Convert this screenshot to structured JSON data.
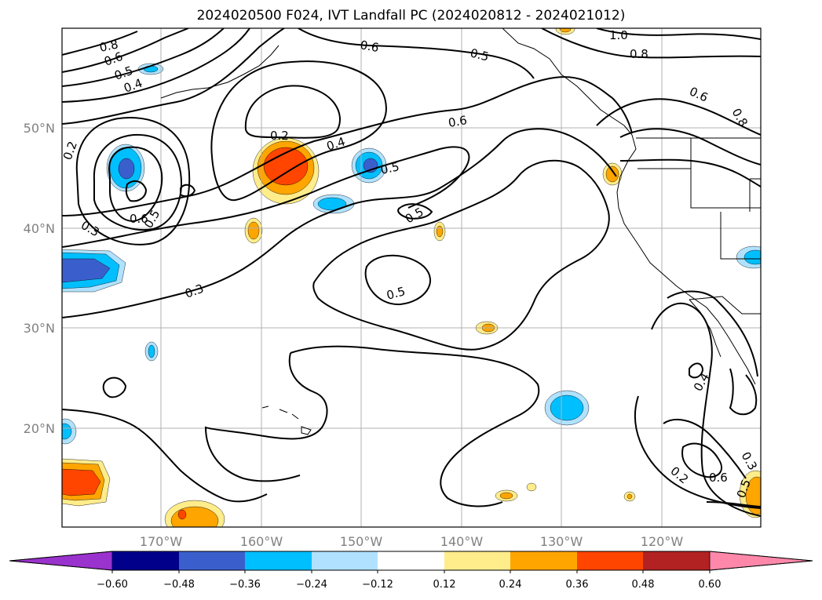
{
  "title": "2024020500 F024, IVT Landfall PC (2024020812 - 2024021012)",
  "latitude_labels": [
    "50°N",
    "40°N",
    "30°N",
    "20°N"
  ],
  "longitude_labels": [
    "170°W",
    "160°W",
    "150°W",
    "140°W",
    "130°W",
    "120°W"
  ],
  "colorbar": {
    "tick_labels": [
      "−0.60",
      "−0.48",
      "−0.36",
      "−0.24",
      "−0.12",
      "0.12",
      "0.24",
      "0.36",
      "0.48",
      "0.60"
    ],
    "colors": [
      "#9a32cd",
      "#00008b",
      "#3a5fcd",
      "#00bfff",
      "#b0e2ff",
      "#ffffff",
      "#ffec8b",
      "#ffa500",
      "#ff4500",
      "#b22222",
      "#ff88aa"
    ]
  },
  "contour_labels": [
    "0.8",
    "0.6",
    "0.5",
    "0.4",
    "0.6",
    "0.5",
    "1.0",
    "0.8",
    "0.6",
    "0.8",
    "0.2",
    "0.4",
    "0.6",
    "0.5",
    "0.2",
    "0.3",
    "0.6",
    "0.5",
    "0.5",
    "0.3",
    "0.5",
    "0.4",
    "0.3",
    "0.2",
    "0.6",
    "0.5"
  ],
  "fill_colors": {
    "neg_deep": "#3a5fcd",
    "neg_mid": "#00bfff",
    "neg_light": "#b0e2ff",
    "pos_light": "#ffec8b",
    "pos_mid": "#ffa500",
    "pos_strong": "#ff4500"
  }
}
